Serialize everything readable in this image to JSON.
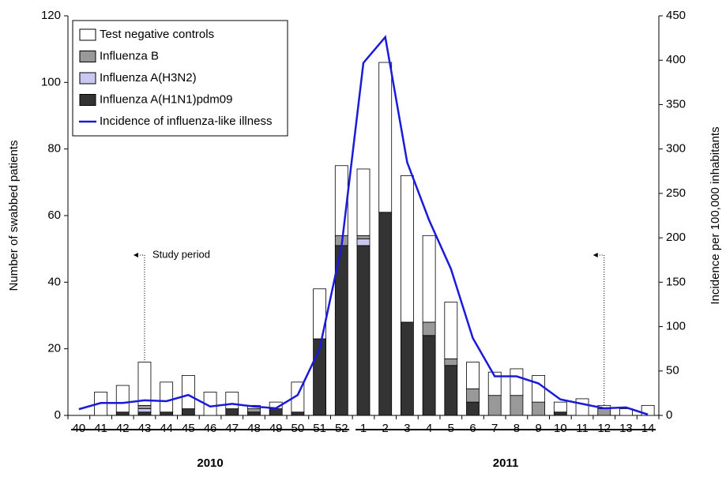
{
  "chart_data": {
    "type": "bar",
    "categories": [
      "40",
      "41",
      "42",
      "43",
      "44",
      "45",
      "46",
      "47",
      "48",
      "49",
      "50",
      "51",
      "52",
      "1",
      "2",
      "3",
      "4",
      "5",
      "6",
      "7",
      "8",
      "9",
      "10",
      "11",
      "12",
      "13",
      "14"
    ],
    "series": [
      {
        "name": "Influenza A(H1N1)pdm09",
        "color": "#333333",
        "values": [
          0,
          0,
          1,
          1,
          1,
          2,
          0,
          2,
          1,
          2,
          1,
          23,
          51,
          51,
          61,
          28,
          24,
          15,
          4,
          0,
          0,
          0,
          1,
          0,
          0,
          0,
          0
        ]
      },
      {
        "name": "Influenza A(H3N2)",
        "color": "#c8c8f0",
        "values": [
          0,
          0,
          0,
          1,
          0,
          0,
          0,
          0,
          0,
          0,
          0,
          0,
          0,
          2,
          0,
          0,
          0,
          0,
          0,
          0,
          0,
          0,
          0,
          0,
          0,
          0,
          0
        ]
      },
      {
        "name": "Influenza B",
        "color": "#999999",
        "values": [
          0,
          0,
          0,
          1,
          0,
          0,
          0,
          0,
          1,
          0,
          0,
          0,
          3,
          1,
          0,
          0,
          4,
          2,
          4,
          6,
          6,
          4,
          0,
          0,
          2,
          0,
          0
        ]
      },
      {
        "name": "Test negative controls",
        "color": "#ffffff",
        "values": [
          0,
          7,
          8,
          13,
          9,
          10,
          7,
          5,
          1,
          2,
          9,
          15,
          21,
          20,
          45,
          44,
          26,
          17,
          8,
          7,
          8,
          8,
          3,
          5,
          1,
          2,
          3
        ]
      },
      {
        "name": "Incidence of influenza-like illness",
        "color": "#1a1adb",
        "type": "line",
        "axis": "y2",
        "values": [
          7,
          14,
          14,
          17,
          16,
          23,
          10,
          13,
          10,
          8,
          23,
          75,
          190,
          397,
          426,
          285,
          220,
          165,
          87,
          44,
          44,
          36,
          18,
          13,
          8,
          9,
          1
        ]
      }
    ],
    "legend_order": [
      3,
      2,
      1,
      0,
      4
    ],
    "ylabel": "Number of swabbed patients",
    "y2label": "Incidence per 100,000 inhabitants",
    "ylim": [
      0,
      120
    ],
    "yticks": [
      0,
      20,
      40,
      60,
      80,
      100,
      120
    ],
    "y2lim": [
      0,
      450
    ],
    "y2ticks": [
      0,
      50,
      100,
      150,
      200,
      250,
      300,
      350,
      400,
      450
    ],
    "annotation": "Study period",
    "x_groups": [
      "2010",
      "2011"
    ]
  }
}
